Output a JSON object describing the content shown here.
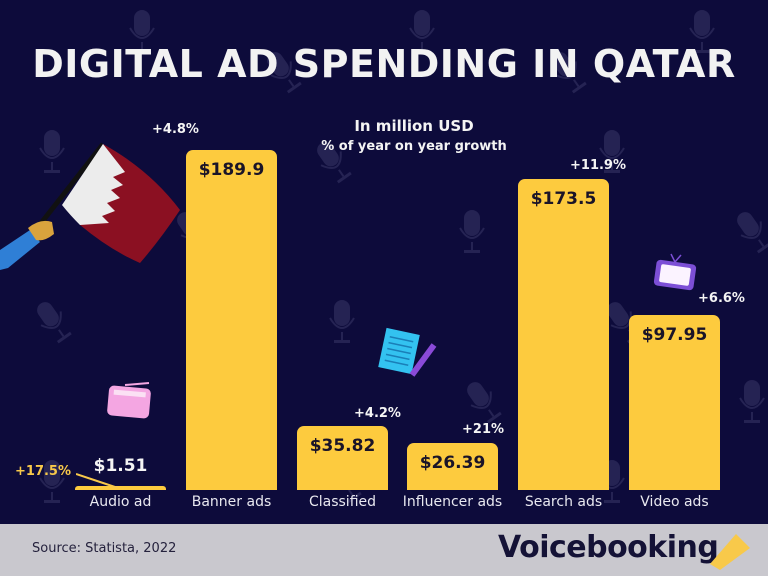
{
  "title": "DIGITAL AD SPENDING IN QATAR",
  "subtitle_units": "In million USD",
  "subtitle_growth": "% of year on year growth",
  "footer": {
    "source": "Source: Statista, 2022",
    "brand": "Voicebooking"
  },
  "colors": {
    "background": "#0d0b3b",
    "bar": "#fdcb3e",
    "footer": "#c9c8ce",
    "accent_growth": "#f8c94a"
  },
  "chart_data": {
    "type": "bar",
    "title": "DIGITAL AD SPENDING IN QATAR",
    "subtitle": "In million USD; % of year on year growth",
    "xlabel": "",
    "ylabel": "In million USD",
    "ylim": [
      0,
      200
    ],
    "grid": false,
    "legend": "none",
    "categories": [
      "Audio ad",
      "Banner ads",
      "Classified",
      "Influencer ads",
      "Search ads",
      "Video ads"
    ],
    "values": [
      1.51,
      189.9,
      35.82,
      26.39,
      173.5,
      97.95
    ],
    "value_labels": [
      "$1.51",
      "$189.9",
      "$35.82",
      "$26.39",
      "$173.5",
      "$97.95"
    ],
    "growth_labels": [
      "+17.5%",
      "+4.8%",
      "+4.2%",
      "+21%",
      "+11.9%",
      "+6.6%"
    ],
    "growth_pct": [
      17.5,
      4.8,
      4.2,
      21,
      11.9,
      6.6
    ]
  },
  "decorations": [
    "qatar-flag-illustration",
    "radio-icon",
    "notepad-pencil-icon",
    "tv-icon",
    "megaphone-logo-icon",
    "microphone-pattern"
  ]
}
